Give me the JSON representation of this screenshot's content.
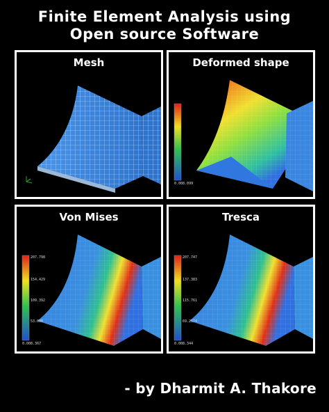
{
  "title_line1": "Finite Element Analysis using",
  "title_line2": "Open source Software",
  "byline": "- by Dharmit A. Thakore",
  "panels": [
    {
      "label": "Mesh"
    },
    {
      "label": "Deformed shape",
      "legend_max": "",
      "legend_min": "0.008.099"
    },
    {
      "label": "Von Mises",
      "legend_max": "207.798",
      "legend_mid1": "154.429",
      "legend_mid2": "109.392",
      "legend_mid3": "53.000",
      "legend_min": "0.008.367"
    },
    {
      "label": "Tresca",
      "legend_max": "207.747",
      "legend_mid1": "137.383",
      "legend_mid2": "115.761",
      "legend_mid3": "69.2574",
      "legend_min": "0.008.344"
    }
  ],
  "colors": {
    "mesh_blue": "#3a86e0",
    "red": "#e0201a",
    "yellow": "#f0e020",
    "green": "#30c050",
    "blue": "#2050d0"
  }
}
